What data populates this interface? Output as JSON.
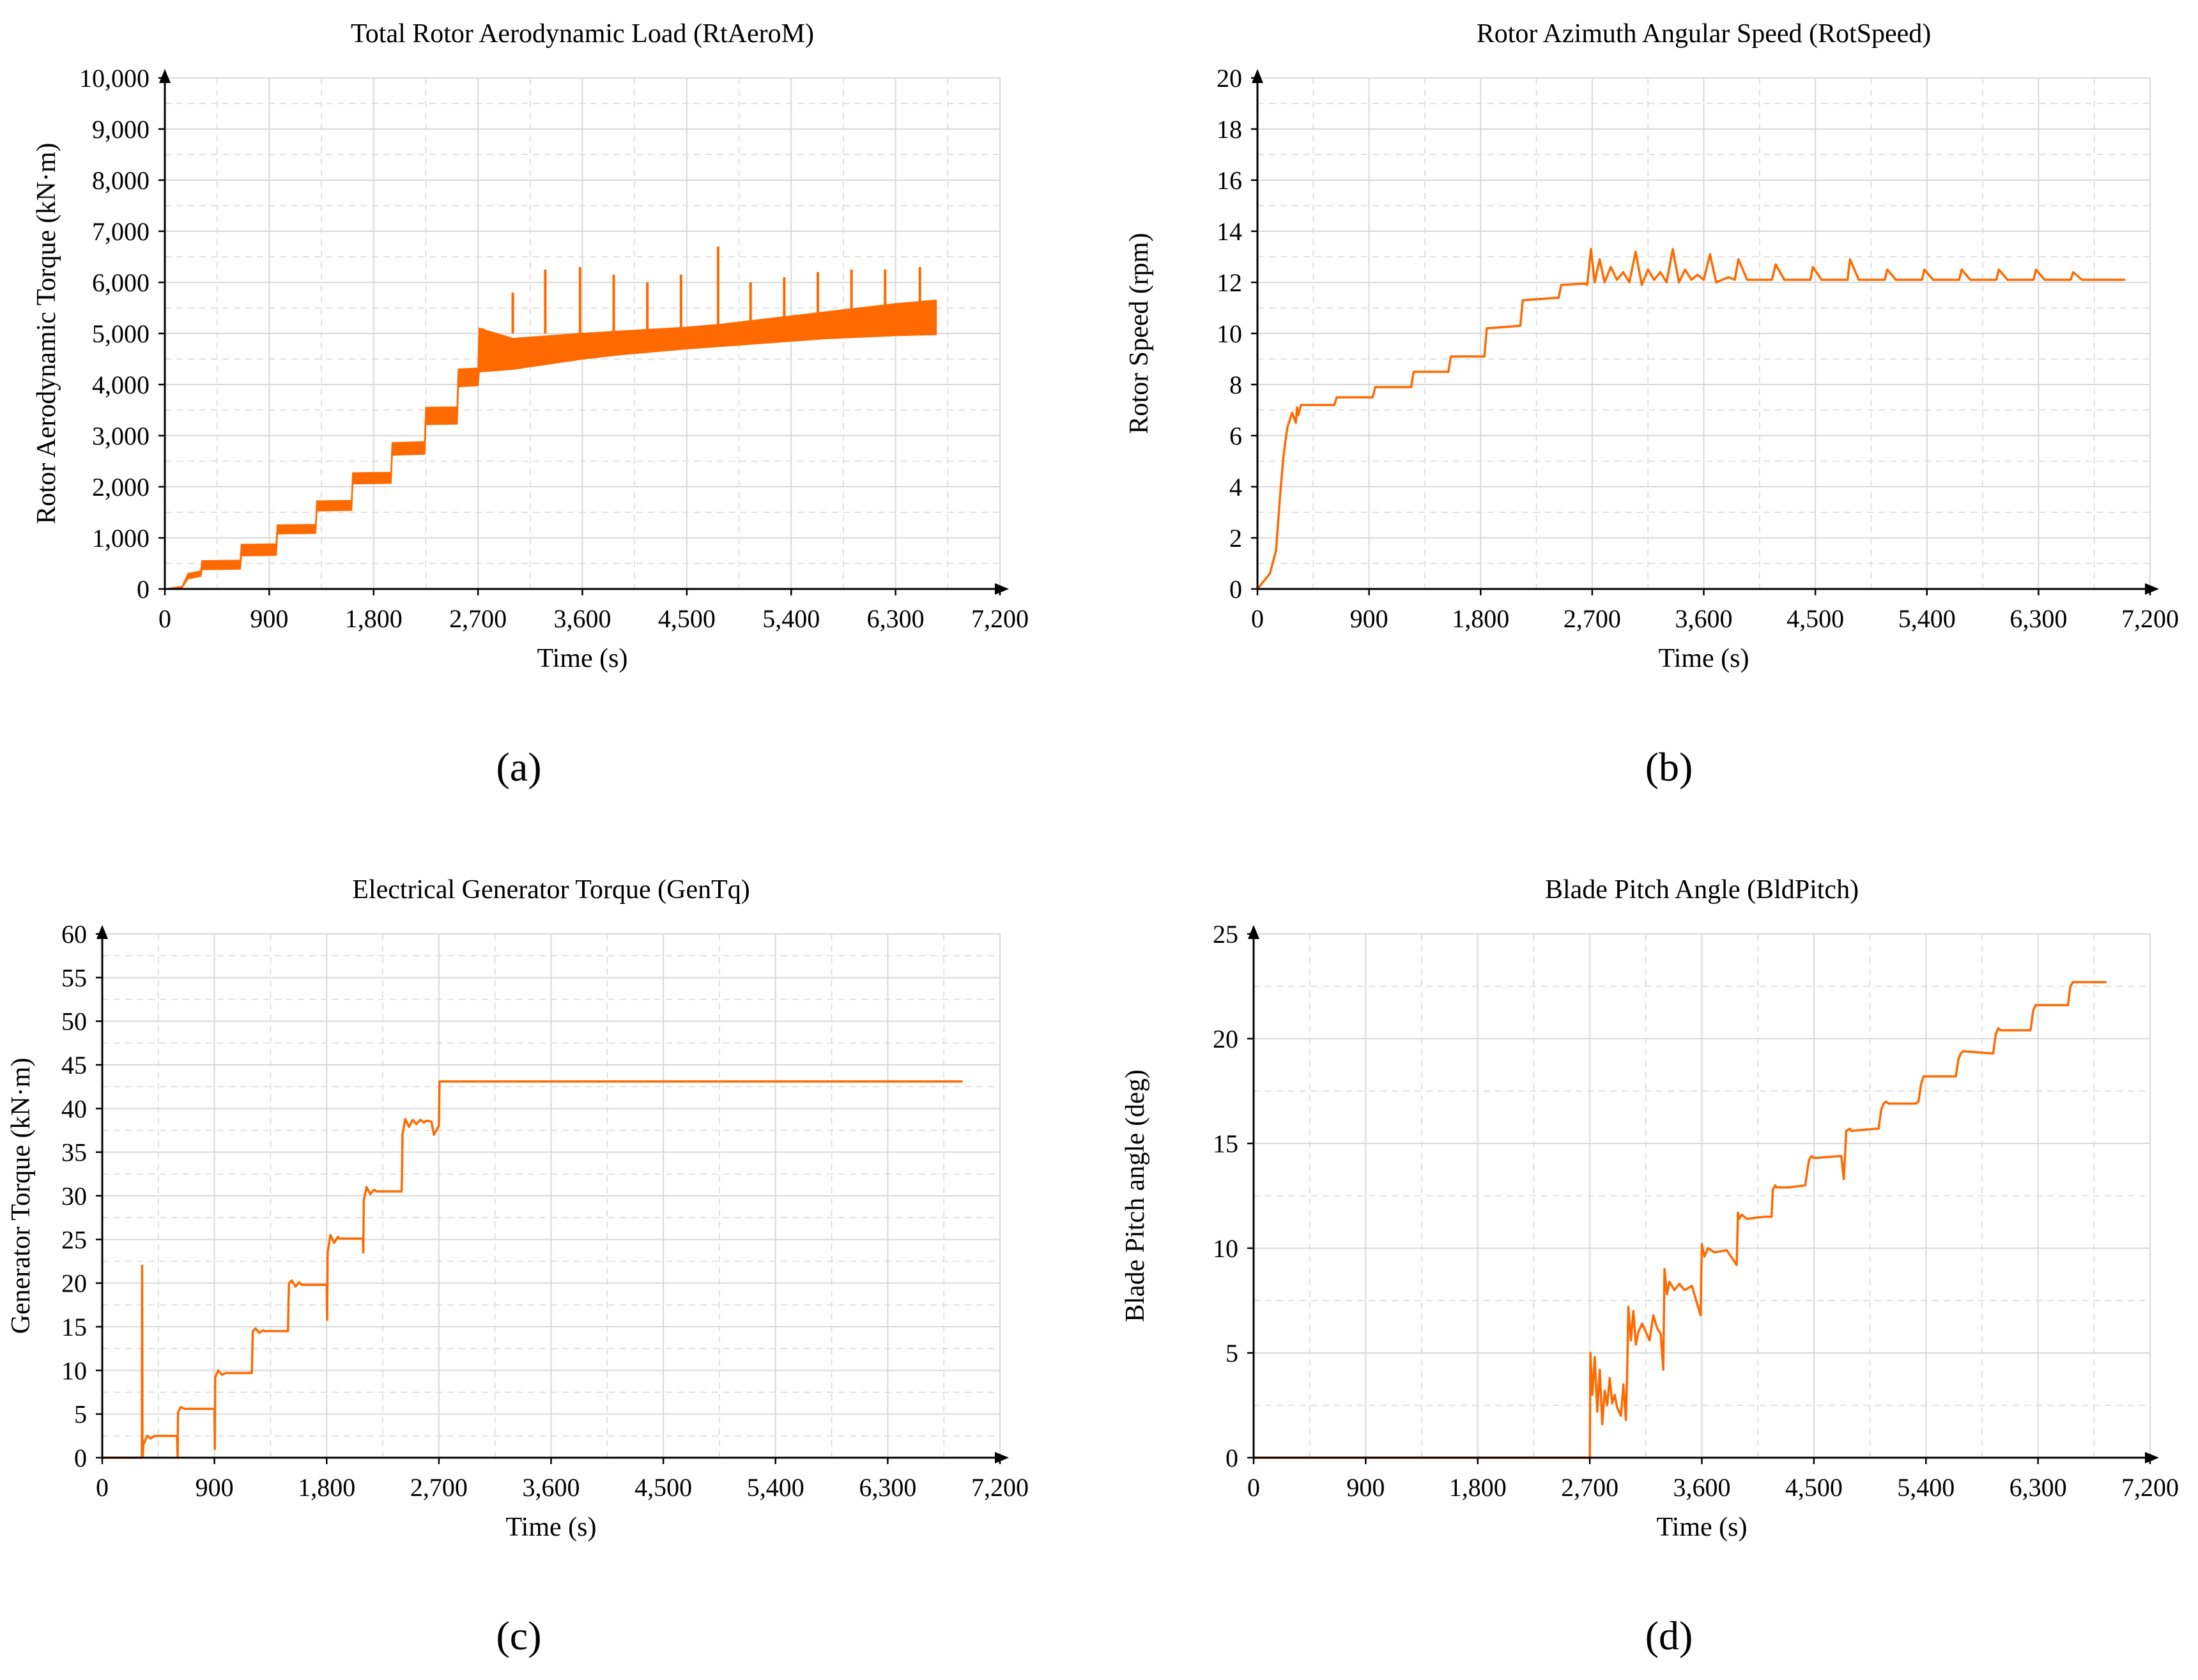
{
  "figure": {
    "panel_labels": [
      "(a)",
      "(b)",
      "(c)",
      "(d)"
    ]
  },
  "colors": {
    "line": "#FF6A00",
    "axis": "#000000",
    "grid": "#D9D9D9"
  },
  "chart_data": [
    {
      "type": "line",
      "title": "Total Rotor Aerodynamic Load (RtAeroM)",
      "xlabel": "Time (s)",
      "ylabel": "Rotor Aerodynamic Torque (kN·m)",
      "xlim": [
        0,
        7200
      ],
      "ylim": [
        0,
        10000
      ],
      "xticks": [
        0,
        900,
        1800,
        2700,
        3600,
        4500,
        5400,
        6300,
        7200
      ],
      "yticks": [
        0,
        1000,
        2000,
        3000,
        4000,
        5000,
        6000,
        7000,
        8000,
        9000,
        10000
      ],
      "xtick_labels": [
        "0",
        "900",
        "1,800",
        "2,700",
        "3,600",
        "4,500",
        "5,400",
        "6,300",
        "7,200"
      ],
      "ytick_labels": [
        "0",
        "1,000",
        "2,000",
        "3,000",
        "4,000",
        "5,000",
        "6,000",
        "7,000",
        "8,000",
        "9,000",
        "10,000"
      ],
      "grid": true,
      "series": [
        {
          "name": "RtAeroM upper envelope",
          "x": [
            0,
            150,
            200,
            310,
            320,
            650,
            660,
            960,
            970,
            1300,
            1310,
            1610,
            1620,
            1950,
            1960,
            2240,
            2250,
            2520,
            2530,
            2700,
            2710,
            3000,
            3300,
            3600,
            3900,
            4200,
            4500,
            4800,
            5100,
            5400,
            5700,
            6000,
            6300,
            6650
          ],
          "y": [
            0,
            50,
            300,
            350,
            550,
            560,
            870,
            880,
            1250,
            1260,
            1720,
            1730,
            2270,
            2280,
            2860,
            2880,
            3550,
            3560,
            4300,
            4320,
            5100,
            4900,
            4950,
            5000,
            5040,
            5080,
            5120,
            5180,
            5260,
            5340,
            5420,
            5500,
            5580,
            5650
          ]
        },
        {
          "name": "RtAeroM lower envelope",
          "x": [
            0,
            150,
            200,
            310,
            320,
            650,
            660,
            960,
            970,
            1300,
            1310,
            1610,
            1620,
            1950,
            1960,
            2240,
            2250,
            2520,
            2530,
            2700,
            2710,
            3000,
            3300,
            3600,
            3900,
            4200,
            4500,
            4800,
            5100,
            5400,
            5700,
            6000,
            6300,
            6650
          ],
          "y": [
            0,
            30,
            200,
            250,
            380,
            390,
            650,
            660,
            1080,
            1090,
            1530,
            1540,
            2060,
            2070,
            2620,
            2640,
            3220,
            3230,
            3960,
            3980,
            4250,
            4300,
            4400,
            4500,
            4580,
            4640,
            4700,
            4750,
            4800,
            4850,
            4900,
            4930,
            4960,
            4980
          ]
        }
      ],
      "spikes": {
        "x": [
          2740,
          3000,
          3280,
          3580,
          3870,
          4160,
          4450,
          4770,
          5050,
          5340,
          5630,
          5920,
          6210,
          6510
        ],
        "y": [
          5100,
          5800,
          6250,
          6300,
          6150,
          6000,
          6150,
          6700,
          6000,
          6100,
          6200,
          6250,
          6250,
          6300
        ]
      }
    },
    {
      "type": "line",
      "title": "Rotor Azimuth Angular Speed (RotSpeed)",
      "xlabel": "Time (s)",
      "ylabel": "Rotor Speed (rpm)",
      "xlim": [
        0,
        7200
      ],
      "ylim": [
        0,
        20
      ],
      "xticks": [
        0,
        900,
        1800,
        2700,
        3600,
        4500,
        5400,
        6300,
        7200
      ],
      "yticks": [
        0,
        2,
        4,
        6,
        8,
        10,
        12,
        14,
        16,
        18,
        20
      ],
      "xtick_labels": [
        "0",
        "900",
        "1,800",
        "2,700",
        "3,600",
        "4,500",
        "5,400",
        "6,300",
        "7,200"
      ],
      "ytick_labels": [
        "0",
        "2",
        "4",
        "6",
        "8",
        "10",
        "12",
        "14",
        "16",
        "18",
        "20"
      ],
      "grid": true,
      "series": [
        {
          "name": "RotSpeed",
          "x": [
            0,
            100,
            150,
            180,
            210,
            240,
            280,
            310,
            320,
            330,
            350,
            360,
            620,
            640,
            930,
            950,
            1240,
            1260,
            1540,
            1560,
            1830,
            1850,
            2120,
            2140,
            2430,
            2450,
            2640,
            2660,
            2690,
            2720,
            2760,
            2800,
            2850,
            2900,
            2950,
            3000,
            3050,
            3100,
            3150,
            3200,
            3250,
            3300,
            3350,
            3400,
            3450,
            3500,
            3550,
            3600,
            3650,
            3700,
            3800,
            3850,
            3880,
            3950,
            4100,
            4150,
            4180,
            4250,
            4450,
            4460,
            4480,
            4550,
            4750,
            4760,
            4780,
            4850,
            5050,
            5060,
            5080,
            5150,
            5350,
            5360,
            5380,
            5450,
            5650,
            5660,
            5680,
            5750,
            5950,
            5960,
            5980,
            6050,
            6250,
            6260,
            6280,
            6350,
            6550,
            6560,
            6580,
            6650,
            6950,
            7000
          ],
          "y": [
            0,
            0.6,
            1.5,
            3.5,
            5.2,
            6.3,
            6.9,
            6.5,
            7.1,
            6.8,
            7.2,
            7.2,
            7.2,
            7.5,
            7.5,
            7.9,
            7.9,
            8.5,
            8.5,
            9.1,
            9.1,
            10.2,
            10.3,
            11.3,
            11.4,
            11.9,
            11.95,
            11.9,
            13.3,
            12.0,
            12.9,
            12.0,
            12.6,
            12.1,
            12.4,
            12.0,
            13.2,
            11.9,
            12.5,
            12.1,
            12.4,
            12.0,
            13.3,
            12.0,
            12.5,
            12.1,
            12.3,
            12.1,
            13.1,
            12.0,
            12.2,
            12.1,
            12.9,
            12.1,
            12.1,
            12.1,
            12.7,
            12.1,
            12.1,
            12.1,
            12.6,
            12.1,
            12.1,
            12.1,
            12.9,
            12.1,
            12.1,
            12.1,
            12.5,
            12.1,
            12.1,
            12.1,
            12.5,
            12.1,
            12.1,
            12.1,
            12.5,
            12.1,
            12.1,
            12.1,
            12.5,
            12.1,
            12.1,
            12.1,
            12.5,
            12.1,
            12.1,
            12.1,
            12.4,
            12.1,
            12.1,
            12.1
          ]
        }
      ]
    },
    {
      "type": "line",
      "title": "Electrical Generator Torque (GenTq)",
      "xlabel": "Time (s)",
      "ylabel": "Generator Torque (kN·m)",
      "xlim": [
        0,
        7200
      ],
      "ylim": [
        0,
        60
      ],
      "xticks": [
        0,
        900,
        1800,
        2700,
        3600,
        4500,
        5400,
        6300,
        7200
      ],
      "yticks": [
        0,
        5,
        10,
        15,
        20,
        25,
        30,
        35,
        40,
        45,
        50,
        55,
        60
      ],
      "xtick_labels": [
        "0",
        "900",
        "1,800",
        "2,700",
        "3,600",
        "4,500",
        "5,400",
        "6,300",
        "7,200"
      ],
      "ytick_labels": [
        "0",
        "5",
        "10",
        "15",
        "20",
        "25",
        "30",
        "35",
        "40",
        "45",
        "50",
        "55",
        "60"
      ],
      "grid": true,
      "series": [
        {
          "name": "GenTq",
          "x": [
            0,
            318,
            320,
            323,
            326,
            330,
            360,
            390,
            420,
            600,
            605,
            608,
            630,
            660,
            900,
            903,
            906,
            930,
            960,
            990,
            1000,
            1200,
            1204,
            1208,
            1230,
            1260,
            1290,
            1300,
            1490,
            1494,
            1498,
            1520,
            1550,
            1580,
            1600,
            1800,
            1804,
            1808,
            1830,
            1860,
            1890,
            1900,
            2090,
            2094,
            2098,
            2120,
            2150,
            2180,
            2200,
            2400,
            2404,
            2408,
            2430,
            2460,
            2490,
            2520,
            2550,
            2580,
            2600,
            2640,
            2660,
            2700,
            2705,
            6900
          ],
          "y": [
            0,
            0,
            22,
            0,
            0.5,
            1.5,
            2.5,
            2.2,
            2.5,
            2.5,
            0,
            5.2,
            5.8,
            5.6,
            5.6,
            1.0,
            9.2,
            10.0,
            9.5,
            9.7,
            9.7,
            9.7,
            12.5,
            14.5,
            14.8,
            14.3,
            14.6,
            14.5,
            14.5,
            18.0,
            20.0,
            20.3,
            19.6,
            20.1,
            19.8,
            19.8,
            15.8,
            23.5,
            25.5,
            24.6,
            25.3,
            25.1,
            25.1,
            23.5,
            29.5,
            31.0,
            30.2,
            30.7,
            30.5,
            30.5,
            32.0,
            37.0,
            38.8,
            37.9,
            38.7,
            38.2,
            38.7,
            38.4,
            38.6,
            38.5,
            37.0,
            38.0,
            43.1,
            43.1
          ]
        }
      ]
    },
    {
      "type": "line",
      "title": "Blade Pitch Angle (BldPitch)",
      "xlabel": "Time (s)",
      "ylabel": "Blade Pitch angle (deg)",
      "xlim": [
        0,
        7200
      ],
      "ylim": [
        0,
        25
      ],
      "xticks": [
        0,
        900,
        1800,
        2700,
        3600,
        4500,
        5400,
        6300,
        7200
      ],
      "yticks": [
        0,
        5,
        10,
        15,
        20,
        25
      ],
      "xtick_labels": [
        "0",
        "900",
        "1,800",
        "2,700",
        "3,600",
        "4,500",
        "5,400",
        "6,300",
        "7,200"
      ],
      "ytick_labels": [
        "0",
        "5",
        "10",
        "15",
        "20",
        "25"
      ],
      "grid": true,
      "series": [
        {
          "name": "BldPitch",
          "x": [
            0,
            2700,
            2705,
            2720,
            2740,
            2760,
            2780,
            2800,
            2820,
            2840,
            2860,
            2880,
            2900,
            2920,
            2950,
            2970,
            2990,
            3000,
            3010,
            3030,
            3050,
            3070,
            3090,
            3120,
            3150,
            3180,
            3210,
            3240,
            3270,
            3290,
            3300,
            3320,
            3340,
            3380,
            3420,
            3460,
            3520,
            3590,
            3600,
            3620,
            3650,
            3700,
            3800,
            3880,
            3890,
            3900,
            3920,
            3960,
            4100,
            4160,
            4170,
            4190,
            4200,
            4300,
            4430,
            4460,
            4480,
            4500,
            4720,
            4740,
            4760,
            4790,
            4800,
            5000,
            5020,
            5040,
            5060,
            5080,
            5100,
            5320,
            5340,
            5360,
            5380,
            5400,
            5620,
            5640,
            5660,
            5680,
            5700,
            5920,
            5940,
            5960,
            5980,
            6000,
            6220,
            6240,
            6260,
            6280,
            6300,
            6520,
            6540,
            6560,
            6580,
            6600,
            6850
          ],
          "y": [
            0,
            0,
            5.0,
            3.0,
            4.8,
            2.2,
            4.2,
            1.6,
            3.2,
            2.5,
            3.8,
            2.6,
            3.0,
            2.4,
            2.0,
            3.5,
            1.8,
            4.0,
            7.2,
            5.6,
            7.0,
            5.4,
            6.0,
            6.4,
            6.0,
            5.6,
            6.8,
            6.2,
            5.9,
            4.2,
            9.0,
            7.8,
            8.4,
            8.0,
            8.3,
            8.0,
            8.2,
            6.8,
            10.2,
            9.6,
            10.0,
            9.8,
            9.9,
            9.2,
            11.7,
            11.4,
            11.6,
            11.4,
            11.5,
            11.5,
            12.8,
            13.0,
            12.9,
            12.9,
            13.0,
            14.2,
            14.4,
            14.3,
            14.4,
            13.3,
            15.6,
            15.7,
            15.6,
            15.7,
            15.7,
            16.6,
            16.9,
            17.0,
            16.9,
            16.9,
            17.0,
            17.8,
            18.2,
            18.2,
            18.2,
            18.2,
            19.0,
            19.3,
            19.4,
            19.3,
            19.3,
            20.2,
            20.5,
            20.4,
            20.4,
            20.4,
            21.3,
            21.6,
            21.6,
            21.6,
            21.6,
            22.5,
            22.7,
            22.7,
            22.7
          ]
        }
      ]
    }
  ]
}
